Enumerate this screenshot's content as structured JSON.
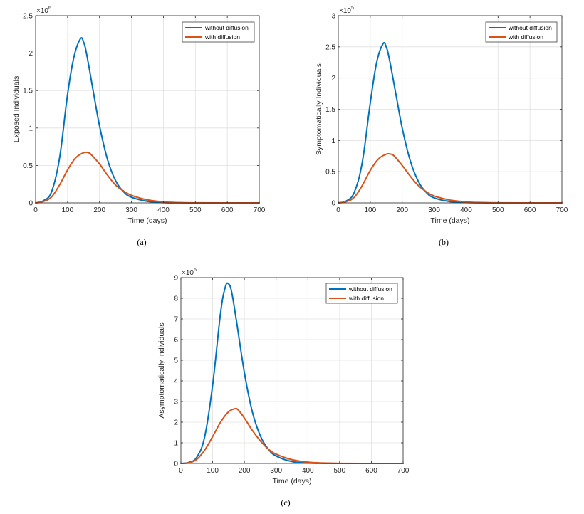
{
  "chart_data": [
    {
      "type": "line",
      "id": "a",
      "caption": "(a)",
      "xlabel": "Time (days)",
      "ylabel": "Exposed Individuals",
      "xlim": [
        0,
        700
      ],
      "ylim": [
        0,
        2.5
      ],
      "xticks": [
        "0",
        "100",
        "200",
        "300",
        "400",
        "500",
        "600",
        "700"
      ],
      "yticks": [
        "0",
        "0.5",
        "1",
        "1.5",
        "2",
        "2.5"
      ],
      "scale_base": "×10",
      "scale_exp": "6",
      "grid": true,
      "legend_position": "top-right",
      "series": [
        {
          "name": "without diffusion",
          "color": "#0072BD",
          "x": [
            0,
            25,
            50,
            75,
            100,
            120,
            140,
            150,
            160,
            180,
            200,
            225,
            250,
            275,
            300,
            350,
            400,
            450,
            500,
            600,
            700
          ],
          "y": [
            0,
            0.03,
            0.15,
            0.6,
            1.45,
            1.95,
            2.19,
            2.15,
            1.98,
            1.5,
            1.03,
            0.58,
            0.3,
            0.15,
            0.075,
            0.02,
            0.004,
            0.001,
            0,
            0,
            0
          ]
        },
        {
          "name": "with diffusion",
          "color": "#D95319",
          "x": [
            0,
            25,
            50,
            75,
            100,
            125,
            150,
            165,
            175,
            200,
            225,
            250,
            275,
            300,
            350,
            400,
            450,
            500,
            600,
            700
          ],
          "y": [
            0,
            0.02,
            0.08,
            0.24,
            0.44,
            0.6,
            0.67,
            0.67,
            0.64,
            0.52,
            0.37,
            0.24,
            0.16,
            0.1,
            0.04,
            0.013,
            0.004,
            0.001,
            0,
            0
          ]
        }
      ]
    },
    {
      "type": "line",
      "id": "b",
      "caption": "(b)",
      "xlabel": "Time (days)",
      "ylabel": "Symptomatically Individuals",
      "xlim": [
        0,
        700
      ],
      "ylim": [
        0,
        3
      ],
      "xticks": [
        "0",
        "100",
        "200",
        "300",
        "400",
        "500",
        "600",
        "700"
      ],
      "yticks": [
        "0",
        "0.5",
        "1",
        "1.5",
        "2",
        "2.5",
        "3"
      ],
      "scale_base": "×10",
      "scale_exp": "5",
      "grid": true,
      "legend_position": "top-right",
      "series": [
        {
          "name": "without diffusion",
          "color": "#0072BD",
          "x": [
            0,
            25,
            50,
            75,
            100,
            120,
            140,
            150,
            160,
            180,
            200,
            225,
            250,
            275,
            300,
            350,
            400,
            450,
            500,
            600,
            700
          ],
          "y": [
            0,
            0.03,
            0.17,
            0.65,
            1.6,
            2.25,
            2.55,
            2.5,
            2.3,
            1.75,
            1.2,
            0.68,
            0.35,
            0.17,
            0.08,
            0.02,
            0.005,
            0.001,
            0,
            0,
            0
          ]
        },
        {
          "name": "with diffusion",
          "color": "#D95319",
          "x": [
            0,
            25,
            50,
            75,
            100,
            125,
            150,
            165,
            175,
            200,
            225,
            250,
            275,
            300,
            350,
            400,
            450,
            500,
            600,
            700
          ],
          "y": [
            0,
            0.02,
            0.09,
            0.28,
            0.52,
            0.7,
            0.78,
            0.78,
            0.75,
            0.6,
            0.43,
            0.28,
            0.18,
            0.11,
            0.045,
            0.015,
            0.005,
            0.001,
            0,
            0
          ]
        }
      ]
    },
    {
      "type": "line",
      "id": "c",
      "caption": "(c)",
      "xlabel": "Time (days)",
      "ylabel": "Asymptomatically Individuals",
      "xlim": [
        0,
        700
      ],
      "ylim": [
        0,
        9
      ],
      "xticks": [
        "0",
        "100",
        "200",
        "300",
        "400",
        "500",
        "600",
        "700"
      ],
      "yticks": [
        "0",
        "1",
        "2",
        "3",
        "4",
        "5",
        "6",
        "7",
        "8",
        "9"
      ],
      "scale_base": "×10",
      "scale_exp": "6",
      "grid": true,
      "legend_position": "top-right",
      "series": [
        {
          "name": "without diffusion",
          "color": "#0072BD",
          "x": [
            0,
            25,
            50,
            75,
            100,
            125,
            140,
            150,
            160,
            175,
            200,
            225,
            250,
            275,
            300,
            350,
            400,
            450,
            500,
            600,
            700
          ],
          "y": [
            0,
            0.05,
            0.3,
            1.3,
            3.8,
            7.3,
            8.55,
            8.7,
            8.3,
            6.9,
            4.4,
            2.5,
            1.35,
            0.7,
            0.36,
            0.09,
            0.02,
            0.005,
            0.001,
            0,
            0
          ]
        },
        {
          "name": "with diffusion",
          "color": "#D95319",
          "x": [
            0,
            25,
            50,
            75,
            100,
            125,
            150,
            170,
            180,
            200,
            225,
            250,
            275,
            300,
            350,
            400,
            450,
            500,
            600,
            700
          ],
          "y": [
            0,
            0.03,
            0.2,
            0.65,
            1.3,
            2.0,
            2.5,
            2.65,
            2.6,
            2.2,
            1.6,
            1.1,
            0.7,
            0.45,
            0.18,
            0.06,
            0.02,
            0.005,
            0,
            0
          ]
        }
      ]
    }
  ]
}
